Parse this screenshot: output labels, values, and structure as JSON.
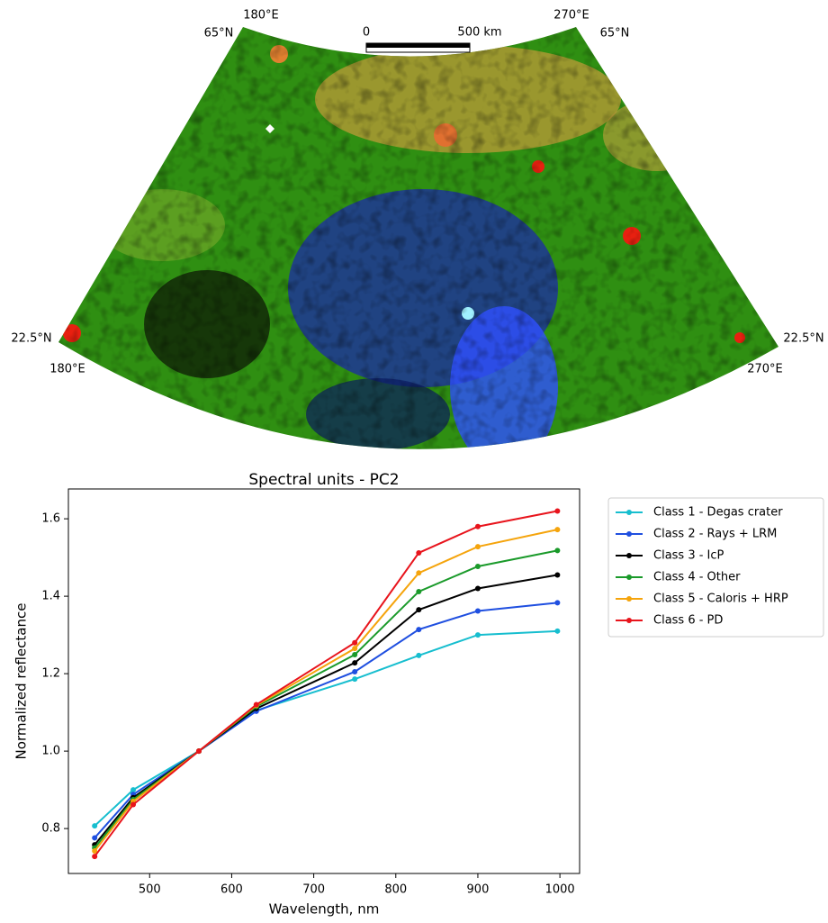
{
  "map": {
    "labels": {
      "top_left_lon": "180°E",
      "top_left_lat": "65°N",
      "top_right_lon": "270°E",
      "top_right_lat": "65°N",
      "left_lat": "22.5°N",
      "left_lon": "180°E",
      "right_lat": "22.5°N",
      "right_lon": "270°E"
    },
    "scale": {
      "start": "0",
      "end": "500 km"
    }
  },
  "chart_data": {
    "type": "line",
    "title": "Spectral units - PC2",
    "x_label": "Wavelength, nm",
    "y_label": "Normalized reflectance",
    "x": [
      433,
      480,
      560,
      630,
      750,
      828,
      900,
      997
    ],
    "series": [
      {
        "name": "Class 1 - Degas crater",
        "color": "#17becf",
        "values": [
          0.807,
          0.9,
          1.0,
          1.105,
          1.186,
          1.247,
          1.3,
          1.31
        ]
      },
      {
        "name": "Class 2 - Rays + LRM",
        "color": "#1f4fe0",
        "values": [
          0.776,
          0.888,
          1.0,
          1.103,
          1.205,
          1.314,
          1.362,
          1.383
        ]
      },
      {
        "name": "Class 3 - IcP",
        "color": "#000000",
        "values": [
          0.758,
          0.88,
          1.0,
          1.11,
          1.228,
          1.365,
          1.42,
          1.455
        ]
      },
      {
        "name": "Class 4 - Other",
        "color": "#1a9a2a",
        "values": [
          0.75,
          0.875,
          1.0,
          1.115,
          1.249,
          1.412,
          1.477,
          1.518
        ]
      },
      {
        "name": "Class 5 - Caloris + HRP",
        "color": "#f5a40c",
        "values": [
          0.742,
          0.87,
          1.0,
          1.118,
          1.265,
          1.46,
          1.528,
          1.572
        ]
      },
      {
        "name": "Class 6 - PD",
        "color": "#e8141c",
        "values": [
          0.728,
          0.862,
          1.0,
          1.12,
          1.28,
          1.512,
          1.58,
          1.62
        ]
      }
    ],
    "xlim": [
      401,
      1024
    ],
    "ylim": [
      0.684,
      1.677
    ],
    "xticks": [
      500,
      600,
      700,
      800,
      900,
      1000
    ],
    "yticks": [
      0.8,
      {
        "value": 1,
        "label": "1.0"
      },
      1.2,
      1.4,
      1.6
    ],
    "legend": "outside-right"
  }
}
